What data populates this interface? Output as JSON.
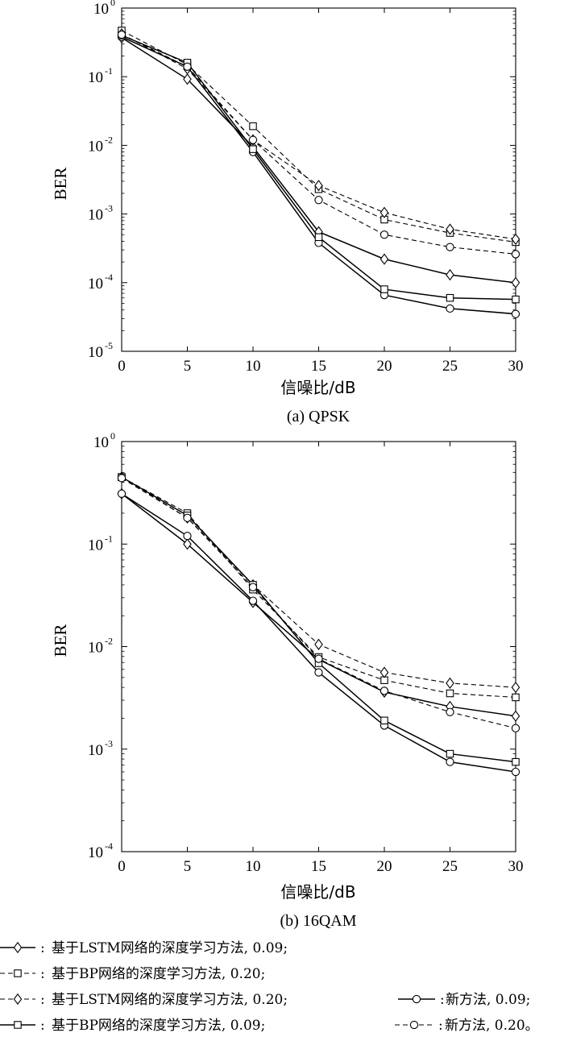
{
  "chart_data": [
    {
      "type": "line",
      "scale_y": "log",
      "caption": "(a) QPSK",
      "xlabel": "信噪比/dB",
      "ylabel": "BER",
      "xlim": [
        0,
        30
      ],
      "ylim": [
        1e-05,
        1
      ],
      "x": [
        0,
        5,
        10,
        15,
        20,
        25,
        30
      ],
      "xticks": [
        "0",
        "5",
        "10",
        "15",
        "20",
        "25",
        "30"
      ],
      "yticks": [
        {
          "base": "10",
          "exp": "-5"
        },
        {
          "base": "10",
          "exp": "-4"
        },
        {
          "base": "10",
          "exp": "-3"
        },
        {
          "base": "10",
          "exp": "-2"
        },
        {
          "base": "10",
          "exp": "-1"
        },
        {
          "base": "10",
          "exp": "0"
        }
      ],
      "series": [
        {
          "name": "基于LSTM网络的深度学习方法, 0.09",
          "marker": "diamond",
          "dash": false,
          "values": [
            0.37,
            0.092,
            0.0095,
            0.00055,
            0.00022,
            0.00013,
            0.0001
          ]
        },
        {
          "name": "基于BP网络的深度学习方法, 0.20",
          "marker": "square",
          "dash": true,
          "values": [
            0.47,
            0.15,
            0.019,
            0.0023,
            0.00083,
            0.00053,
            0.00039
          ]
        },
        {
          "name": "基于LSTM网络的深度学习方法, 0.20",
          "marker": "diamond",
          "dash": true,
          "values": [
            0.42,
            0.13,
            0.012,
            0.0026,
            0.00105,
            0.0006,
            0.00043
          ]
        },
        {
          "name": "新方法, 0.09",
          "marker": "circle",
          "dash": false,
          "values": [
            0.38,
            0.14,
            0.008,
            0.00038,
            6.6e-05,
            4.2e-05,
            3.5e-05
          ]
        },
        {
          "name": "基于BP网络的深度学习方法, 0.09",
          "marker": "square",
          "dash": false,
          "values": [
            0.4,
            0.16,
            0.0088,
            0.00046,
            8e-05,
            6e-05,
            5.7e-05
          ]
        },
        {
          "name": "新方法, 0.20",
          "marker": "circle",
          "dash": true,
          "values": [
            0.41,
            0.14,
            0.012,
            0.0016,
            0.0005,
            0.00033,
            0.00026
          ]
        }
      ]
    },
    {
      "type": "line",
      "scale_y": "log",
      "caption": "(b) 16QAM",
      "xlabel": "信噪比/dB",
      "ylabel": "BER",
      "xlim": [
        0,
        30
      ],
      "ylim": [
        0.0001,
        1
      ],
      "x": [
        0,
        5,
        10,
        15,
        20,
        25,
        30
      ],
      "xticks": [
        "0",
        "5",
        "10",
        "15",
        "20",
        "25",
        "30"
      ],
      "yticks": [
        {
          "base": "10",
          "exp": "-4"
        },
        {
          "base": "10",
          "exp": "-3"
        },
        {
          "base": "10",
          "exp": "-2"
        },
        {
          "base": "10",
          "exp": "-1"
        },
        {
          "base": "10",
          "exp": "0"
        }
      ],
      "series": [
        {
          "name": "基于LSTM网络的深度学习方法, 0.09",
          "marker": "diamond",
          "dash": false,
          "values": [
            0.31,
            0.1,
            0.027,
            0.0075,
            0.0036,
            0.0026,
            0.0021
          ]
        },
        {
          "name": "基于BP网络的深度学习方法, 0.20",
          "marker": "square",
          "dash": true,
          "values": [
            0.45,
            0.2,
            0.036,
            0.0079,
            0.0047,
            0.0035,
            0.0032
          ]
        },
        {
          "name": "基于LSTM网络的深度学习方法, 0.20",
          "marker": "diamond",
          "dash": true,
          "values": [
            0.45,
            0.18,
            0.04,
            0.0105,
            0.0056,
            0.0044,
            0.004
          ]
        },
        {
          "name": "新方法, 0.09",
          "marker": "circle",
          "dash": false,
          "values": [
            0.31,
            0.12,
            0.028,
            0.0056,
            0.0017,
            0.00075,
            0.0006
          ]
        },
        {
          "name": "基于BP网络的深度学习方法, 0.09",
          "marker": "square",
          "dash": false,
          "values": [
            0.45,
            0.19,
            0.04,
            0.0069,
            0.0019,
            0.0009,
            0.00075
          ]
        },
        {
          "name": "新方法, 0.20",
          "marker": "circle",
          "dash": true,
          "values": [
            0.44,
            0.18,
            0.038,
            0.0076,
            0.0037,
            0.0023,
            0.0016
          ]
        }
      ]
    }
  ],
  "legend": {
    "entries": [
      {
        "text": "基于LSTM网络的深度学习方法, 0.09;",
        "marker": "diamond",
        "dash": false
      },
      {
        "text": "基于BP网络的深度学习方法, 0.20;",
        "marker": "square",
        "dash": true
      },
      {
        "text": "基于LSTM网络的深度学习方法, 0.20;",
        "marker": "diamond",
        "dash": true
      },
      {
        "text": "新方法, 0.09;",
        "marker": "circle",
        "dash": false
      },
      {
        "text": "基于BP网络的深度学习方法, 0.09;",
        "marker": "square",
        "dash": false
      },
      {
        "text": "新方法, 0.20。",
        "marker": "circle",
        "dash": true
      }
    ]
  }
}
